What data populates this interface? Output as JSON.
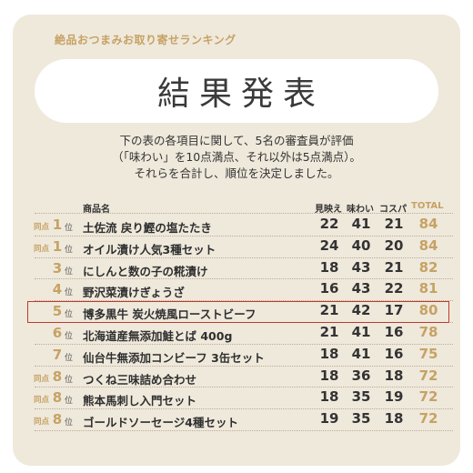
{
  "header_label": "絶品おつまみお取り寄せランキング",
  "title": "結果発表",
  "description": [
    "下の表の各項目に関して、5名の審査員が評価",
    "（「味わい」を10点満点、それ以外は5点満点）。",
    "それらを合計し、順位を決定しました。"
  ],
  "table": {
    "columns": {
      "name": "商品名",
      "look": "見映え",
      "taste": "味わい",
      "value": "コスパ",
      "total": "TOTAL"
    },
    "rank_suffix": "位",
    "rows": [
      {
        "tie": "同点",
        "rank": "1",
        "name": "土佐流 戻り鰹の塩たたき",
        "look": "22",
        "taste": "41",
        "value": "21",
        "total": "84"
      },
      {
        "tie": "同点",
        "rank": "1",
        "name": "オイル漬け人気3種セット",
        "look": "24",
        "taste": "40",
        "value": "20",
        "total": "84"
      },
      {
        "tie": "",
        "rank": "3",
        "name": "にしんと数の子の糀漬け",
        "look": "18",
        "taste": "43",
        "value": "21",
        "total": "82"
      },
      {
        "tie": "",
        "rank": "4",
        "name": "野沢菜漬けぎょうざ",
        "look": "16",
        "taste": "43",
        "value": "22",
        "total": "81"
      },
      {
        "tie": "",
        "rank": "5",
        "name": "博多黒牛 炭火焼風ローストビーフ",
        "look": "21",
        "taste": "42",
        "value": "17",
        "total": "80"
      },
      {
        "tie": "",
        "rank": "6",
        "name": "北海道産無添加鮭とば 400g",
        "look": "21",
        "taste": "41",
        "value": "16",
        "total": "78"
      },
      {
        "tie": "",
        "rank": "7",
        "name": "仙台牛無添加コンビーフ 3缶セット",
        "look": "18",
        "taste": "41",
        "value": "16",
        "total": "75"
      },
      {
        "tie": "同点",
        "rank": "8",
        "name": "つくね三味詰め合わせ",
        "look": "18",
        "taste": "36",
        "value": "18",
        "total": "72"
      },
      {
        "tie": "同点",
        "rank": "8",
        "name": "熊本馬刺し入門セット",
        "look": "18",
        "taste": "35",
        "value": "19",
        "total": "72"
      },
      {
        "tie": "同点",
        "rank": "8",
        "name": "ゴールドソーセージ4種セット",
        "look": "19",
        "taste": "35",
        "value": "18",
        "total": "72"
      }
    ]
  },
  "colors": {
    "card_background": "#efe9dc",
    "accent_gold": "#c6a264",
    "highlight_border": "#c0392b"
  }
}
